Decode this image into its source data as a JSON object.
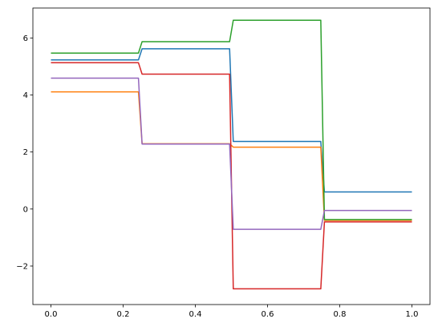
{
  "chart_data": {
    "type": "line",
    "title": "",
    "xlabel": "",
    "ylabel": "",
    "xlim": [
      -0.05,
      1.05
    ],
    "ylim": [
      -3.35,
      7.05
    ],
    "grid": false,
    "legend": "none",
    "x_ticks": [
      {
        "value": 0.0,
        "label": "0.0"
      },
      {
        "value": 0.2,
        "label": "0.2"
      },
      {
        "value": 0.4,
        "label": "0.4"
      },
      {
        "value": 0.6,
        "label": "0.6"
      },
      {
        "value": 0.8,
        "label": "0.8"
      },
      {
        "value": 1.0,
        "label": "1.0"
      }
    ],
    "y_ticks": [
      {
        "value": -2,
        "label": "−2"
      },
      {
        "value": 0,
        "label": "0"
      },
      {
        "value": 2,
        "label": "2"
      },
      {
        "value": 4,
        "label": "4"
      },
      {
        "value": 6,
        "label": "6"
      }
    ],
    "x": [
      0.0,
      0.2424,
      0.2525,
      0.4949,
      0.5051,
      0.7475,
      0.7576,
      1.0
    ],
    "series": [
      {
        "color": "#1f77b4",
        "values": [
          5.23,
          5.23,
          5.62,
          5.62,
          2.37,
          2.37,
          0.6,
          0.6
        ]
      },
      {
        "color": "#ff7f0e",
        "values": [
          4.11,
          4.11,
          2.29,
          2.29,
          2.17,
          2.17,
          -0.4,
          -0.4
        ]
      },
      {
        "color": "#2ca02c",
        "values": [
          5.47,
          5.47,
          5.87,
          5.87,
          6.62,
          6.62,
          -0.37,
          -0.37
        ]
      },
      {
        "color": "#d62728",
        "values": [
          5.13,
          5.13,
          4.73,
          4.73,
          -2.8,
          -2.8,
          -0.45,
          -0.45
        ]
      },
      {
        "color": "#9467bd",
        "values": [
          4.59,
          4.59,
          2.28,
          2.28,
          -0.71,
          -0.71,
          -0.05,
          -0.05
        ]
      }
    ]
  }
}
